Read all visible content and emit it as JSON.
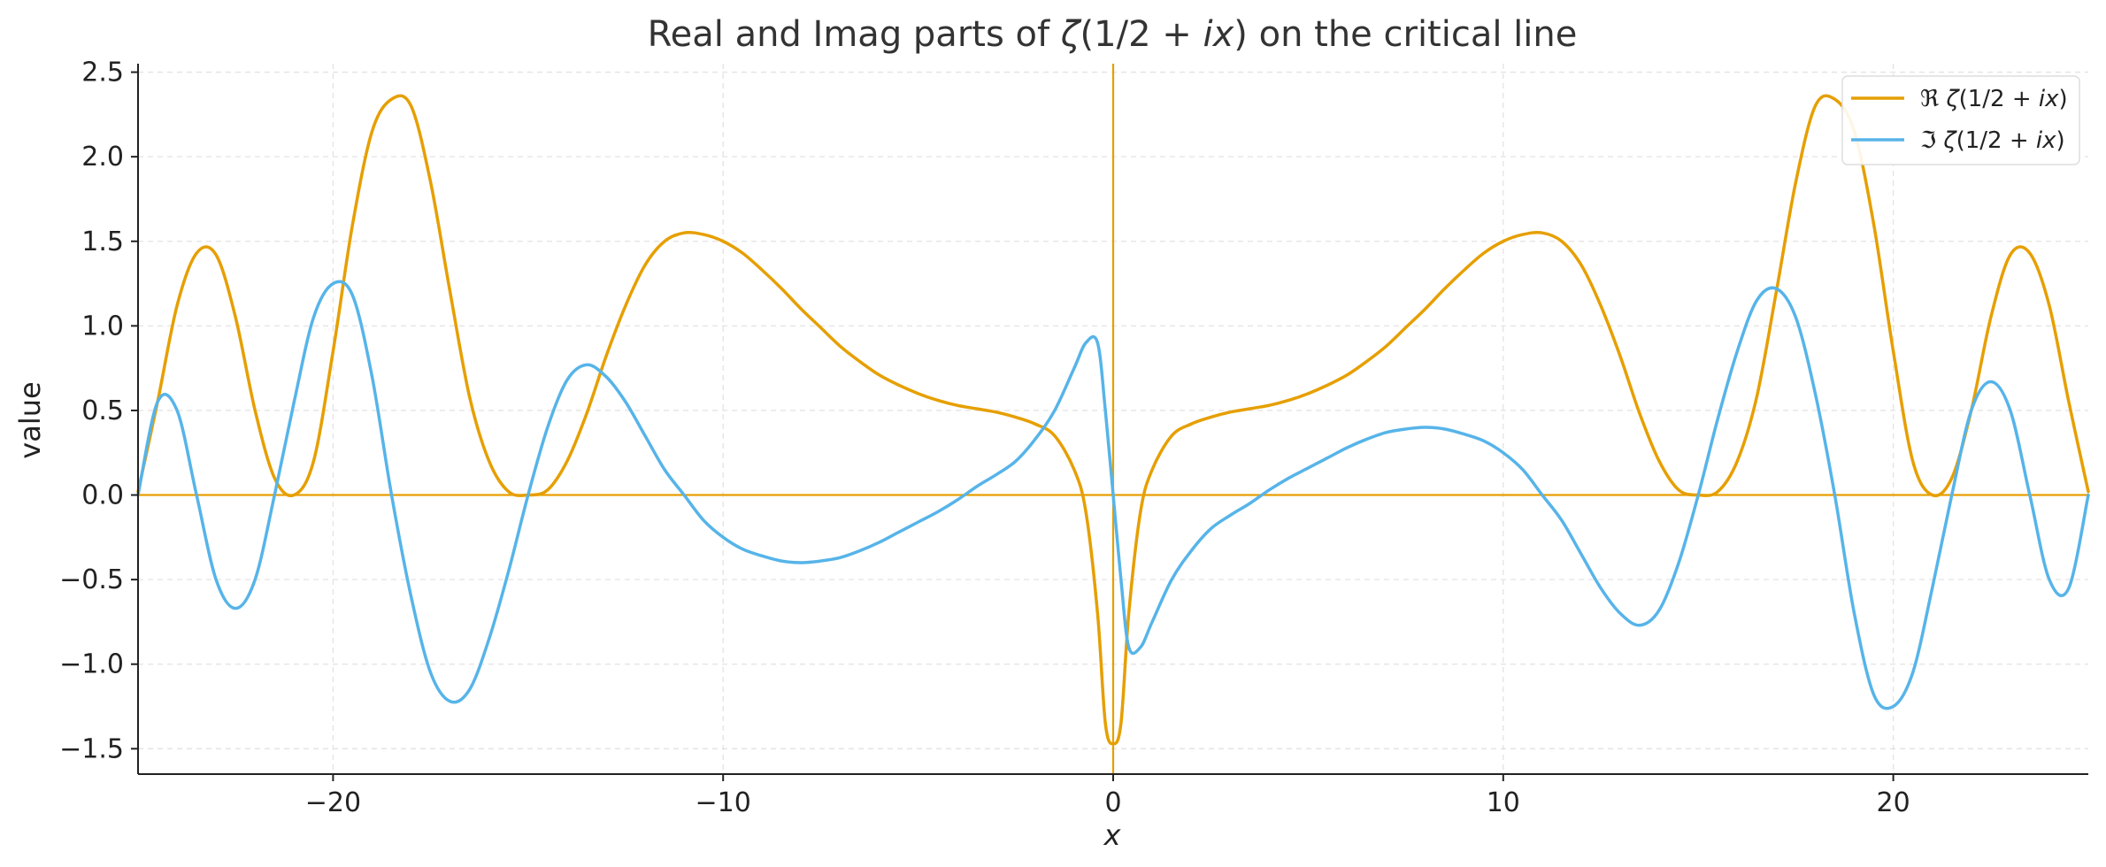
{
  "chart_data": {
    "type": "line",
    "title": {
      "prefix": "Real and Imag parts of ",
      "zeta": "ζ",
      "open": "(1/2 + ",
      "i": "i",
      "x": "x",
      "close": ")",
      "suffix": " on the critical line"
    },
    "xlabel": "x",
    "ylabel": "value",
    "xlim": [
      -25,
      25
    ],
    "ylim": [
      -1.65,
      2.55
    ],
    "xticks": [
      -20,
      -10,
      0,
      10,
      20
    ],
    "xtick_labels": [
      "−20",
      "−10",
      "0",
      "10",
      "20"
    ],
    "yticks": [
      2.5,
      2.0,
      1.5,
      1.0,
      0.5,
      0.0,
      -0.5,
      -1.0,
      -1.5
    ],
    "ytick_labels": [
      "2.5",
      "2.0",
      "1.5",
      "1.0",
      "0.5",
      "0.0",
      "−0.5",
      "−1.0",
      "−1.5"
    ],
    "grid": true,
    "legend_position": "top-right",
    "reference_lines": {
      "horizontal_y": 0,
      "vertical_x": 0,
      "color": "#E69F00"
    },
    "series": [
      {
        "name": "ℜ ζ(1/2 + ix)",
        "legend_parts": [
          "ℜ ",
          "ζ",
          "(1/2 + ",
          "i",
          "x",
          ")"
        ],
        "color": "#E69F00",
        "x": [
          -25,
          -24.5,
          -24,
          -23.5,
          -23,
          -22.5,
          -22,
          -21.5,
          -21,
          -20.5,
          -20,
          -19.5,
          -19,
          -18.5,
          -18,
          -17.5,
          -17,
          -16.5,
          -16,
          -15.5,
          -15,
          -14.5,
          -14,
          -13.5,
          -13,
          -12.5,
          -12,
          -11.5,
          -11,
          -10.5,
          -10,
          -9.5,
          -9,
          -8.5,
          -8,
          -7.5,
          -7,
          -6.5,
          -6,
          -5.5,
          -5,
          -4.5,
          -4,
          -3.5,
          -3,
          -2.5,
          -2,
          -1.5,
          -1,
          -0.7,
          -0.4,
          -0.2,
          0,
          0.2,
          0.4,
          0.7,
          1,
          1.5,
          2,
          2.5,
          3,
          3.5,
          4,
          4.5,
          5,
          5.5,
          6,
          6.5,
          7,
          7.5,
          8,
          8.5,
          9,
          9.5,
          10,
          10.5,
          11,
          11.5,
          12,
          12.5,
          13,
          13.5,
          14,
          14.5,
          15,
          15.5,
          16,
          16.5,
          17,
          17.5,
          18,
          18.5,
          19,
          19.5,
          20,
          20.5,
          21,
          21.5,
          22,
          22.5,
          23,
          23.5,
          24,
          24.5,
          25
        ],
        "y": [
          0.02,
          0.55,
          1.12,
          1.43,
          1.42,
          1.05,
          0.5,
          0.1,
          0.0,
          0.2,
          0.85,
          1.6,
          2.15,
          2.34,
          2.3,
          1.85,
          1.2,
          0.58,
          0.2,
          0.02,
          0.0,
          0.03,
          0.2,
          0.48,
          0.82,
          1.12,
          1.36,
          1.5,
          1.55,
          1.54,
          1.5,
          1.43,
          1.33,
          1.22,
          1.1,
          0.99,
          0.88,
          0.79,
          0.71,
          0.65,
          0.6,
          0.56,
          0.53,
          0.51,
          0.49,
          0.46,
          0.42,
          0.35,
          0.15,
          -0.1,
          -0.7,
          -1.35,
          -1.47,
          -1.35,
          -0.7,
          -0.1,
          0.15,
          0.35,
          0.42,
          0.46,
          0.49,
          0.51,
          0.53,
          0.56,
          0.6,
          0.65,
          0.71,
          0.79,
          0.88,
          0.99,
          1.1,
          1.22,
          1.33,
          1.43,
          1.5,
          1.54,
          1.55,
          1.5,
          1.36,
          1.12,
          0.82,
          0.48,
          0.2,
          0.03,
          0.0,
          0.02,
          0.2,
          0.58,
          1.2,
          1.85,
          2.3,
          2.34,
          2.15,
          1.6,
          0.85,
          0.2,
          0.0,
          0.1,
          0.5,
          1.05,
          1.42,
          1.43,
          1.12,
          0.55,
          0.02
        ]
      },
      {
        "name": "ℑ ζ(1/2 + ix)",
        "legend_parts": [
          "ℑ ",
          "ζ",
          "(1/2 + ",
          "i",
          "x",
          ")"
        ],
        "color": "#56B4E9",
        "x": [
          -25,
          -24.5,
          -24,
          -23.5,
          -23,
          -22.5,
          -22,
          -21.5,
          -21,
          -20.5,
          -20,
          -19.5,
          -19,
          -18.5,
          -18,
          -17.5,
          -17,
          -16.5,
          -16,
          -15.5,
          -15,
          -14.5,
          -14,
          -13.5,
          -13,
          -12.5,
          -12,
          -11.5,
          -11,
          -10.5,
          -10,
          -9.5,
          -9,
          -8.5,
          -8,
          -7.5,
          -7,
          -6.5,
          -6,
          -5.5,
          -5,
          -4.5,
          -4,
          -3.5,
          -3,
          -2.5,
          -2,
          -1.5,
          -1,
          -0.7,
          -0.4,
          -0.2,
          0,
          0.2,
          0.4,
          0.7,
          1,
          1.5,
          2,
          2.5,
          3,
          3.5,
          4,
          4.5,
          5,
          5.5,
          6,
          6.5,
          7,
          7.5,
          8,
          8.5,
          9,
          9.5,
          10,
          10.5,
          11,
          11.5,
          12,
          12.5,
          13,
          13.5,
          14,
          14.5,
          15,
          15.5,
          16,
          16.5,
          17,
          17.5,
          18,
          18.5,
          19,
          19.5,
          20,
          20.5,
          21,
          21.5,
          22,
          22.5,
          23,
          23.5,
          24,
          24.5,
          25
        ],
        "y": [
          0.0,
          0.55,
          0.5,
          0.0,
          -0.5,
          -0.67,
          -0.5,
          0.0,
          0.55,
          1.05,
          1.25,
          1.18,
          0.7,
          0.0,
          -0.6,
          -1.05,
          -1.22,
          -1.15,
          -0.85,
          -0.45,
          0.0,
          0.4,
          0.68,
          0.77,
          0.7,
          0.55,
          0.35,
          0.15,
          0.0,
          -0.15,
          -0.25,
          -0.32,
          -0.36,
          -0.39,
          -0.4,
          -0.39,
          -0.37,
          -0.33,
          -0.28,
          -0.22,
          -0.16,
          -0.1,
          -0.03,
          0.05,
          0.12,
          0.2,
          0.33,
          0.5,
          0.75,
          0.9,
          0.9,
          0.5,
          0.0,
          -0.5,
          -0.9,
          -0.9,
          -0.75,
          -0.5,
          -0.33,
          -0.2,
          -0.12,
          -0.05,
          0.03,
          0.1,
          0.16,
          0.22,
          0.28,
          0.33,
          0.37,
          0.39,
          0.4,
          0.39,
          0.36,
          0.32,
          0.25,
          0.15,
          0.0,
          -0.15,
          -0.35,
          -0.55,
          -0.7,
          -0.77,
          -0.68,
          -0.4,
          0.0,
          0.45,
          0.85,
          1.15,
          1.22,
          1.05,
          0.6,
          0.0,
          -0.7,
          -1.18,
          -1.25,
          -1.05,
          -0.55,
          0.0,
          0.5,
          0.67,
          0.5,
          0.0,
          -0.5,
          -0.55,
          0.0
        ]
      }
    ]
  }
}
